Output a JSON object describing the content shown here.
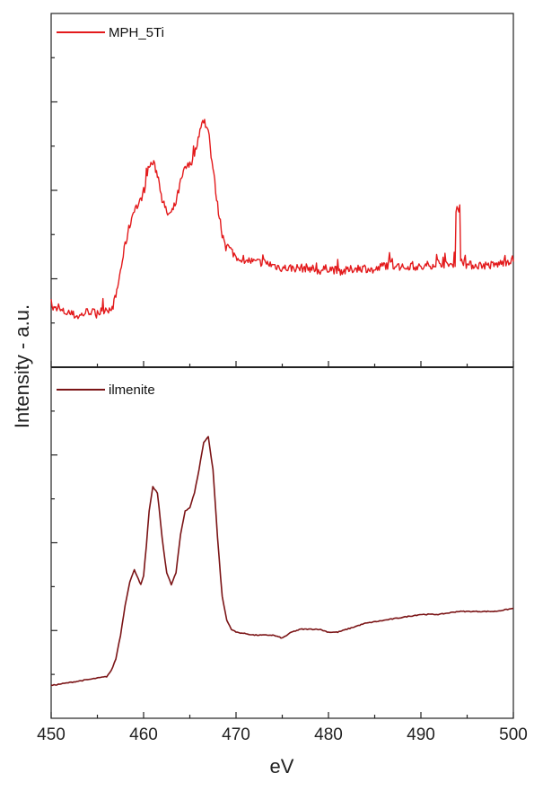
{
  "chart_data": {
    "type": "line",
    "xlabel": "eV",
    "ylabel": "Intensity - a.u.",
    "xlim": [
      450,
      500
    ],
    "x_ticks": [
      450,
      460,
      470,
      480,
      490,
      500
    ],
    "grid": false,
    "legend_position": "top-left",
    "panels": [
      {
        "name": "top",
        "ylim": [
          0,
          1
        ],
        "y_ticks_shown": false,
        "series": [
          {
            "name": "MPH_5Ti",
            "color": "#e31a1c",
            "noisy": true,
            "x": [
              450,
              451,
              452,
              453,
              454,
              455,
              456,
              456.5,
              457,
              457.5,
              458,
              458.5,
              459,
              459.5,
              460,
              460.5,
              461,
              461.5,
              462,
              462.5,
              463,
              463.5,
              464,
              464.5,
              465,
              465.5,
              466,
              466.5,
              467,
              467.5,
              468,
              468.5,
              469,
              469.5,
              470,
              471,
              472,
              473,
              474,
              475,
              476,
              477,
              478,
              479,
              480,
              481,
              482,
              483,
              484,
              485,
              486,
              487,
              488,
              489,
              490,
              491,
              492,
              493,
              493.7,
              493.8,
              494.0,
              494.2,
              494.3,
              495,
              496,
              497,
              498,
              499,
              500
            ],
            "y": [
              0.11,
              0.1,
              0.09,
              0.08,
              0.1,
              0.09,
              0.11,
              0.1,
              0.15,
              0.24,
              0.33,
              0.4,
              0.46,
              0.47,
              0.52,
              0.6,
              0.62,
              0.58,
              0.5,
              0.44,
              0.44,
              0.48,
              0.55,
              0.6,
              0.61,
              0.65,
              0.72,
              0.77,
              0.72,
              0.6,
              0.47,
              0.37,
              0.33,
              0.31,
              0.29,
              0.28,
              0.27,
              0.27,
              0.26,
              0.25,
              0.25,
              0.25,
              0.25,
              0.24,
              0.25,
              0.24,
              0.24,
              0.25,
              0.25,
              0.24,
              0.26,
              0.26,
              0.25,
              0.26,
              0.25,
              0.26,
              0.27,
              0.26,
              0.27,
              0.46,
              0.46,
              0.46,
              0.28,
              0.26,
              0.26,
              0.26,
              0.26,
              0.27,
              0.28
            ]
          }
        ]
      },
      {
        "name": "bottom",
        "ylim": [
          0,
          1
        ],
        "y_ticks_shown": false,
        "series": [
          {
            "name": "ilmenite",
            "color": "#7b1416",
            "noisy": false,
            "x": [
              450,
              452,
              454,
              456,
              456.5,
              457,
              457.5,
              458,
              458.5,
              459,
              459.3,
              459.7,
              460,
              460.3,
              460.6,
              461,
              461.5,
              462,
              462.5,
              463,
              463.5,
              464,
              464.5,
              465,
              465.5,
              466,
              466.5,
              467,
              467.5,
              468,
              468.5,
              469,
              469.5,
              470,
              472,
              474,
              475,
              476,
              477,
              478,
              479,
              480,
              481,
              482,
              484,
              486,
              488,
              490,
              492,
              494,
              496,
              498,
              500
            ],
            "y": [
              0.05,
              0.06,
              0.07,
              0.08,
              0.1,
              0.14,
              0.22,
              0.32,
              0.4,
              0.44,
              0.42,
              0.39,
              0.42,
              0.52,
              0.64,
              0.72,
              0.7,
              0.55,
              0.43,
              0.39,
              0.43,
              0.56,
              0.64,
              0.65,
              0.7,
              0.78,
              0.87,
              0.89,
              0.78,
              0.55,
              0.35,
              0.27,
              0.24,
              0.23,
              0.22,
              0.22,
              0.21,
              0.23,
              0.24,
              0.24,
              0.24,
              0.23,
              0.23,
              0.24,
              0.26,
              0.27,
              0.28,
              0.29,
              0.29,
              0.3,
              0.3,
              0.3,
              0.31
            ]
          }
        ]
      }
    ]
  }
}
